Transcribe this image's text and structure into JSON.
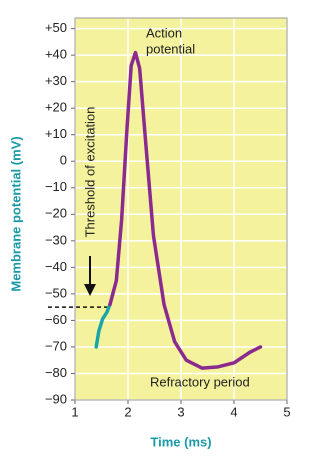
{
  "chart_data": {
    "type": "line",
    "x_label": "Time (ms)",
    "y_label": "Membrane potential (mV)",
    "xlim": [
      1,
      5
    ],
    "xticks": [
      1,
      2,
      3,
      4,
      5
    ],
    "ylim": [
      -90,
      54
    ],
    "yticks": [
      {
        "value": 50,
        "label": "+50"
      },
      {
        "value": 40,
        "label": "+40"
      },
      {
        "value": 30,
        "label": "+30"
      },
      {
        "value": 20,
        "label": "+20"
      },
      {
        "value": 10,
        "label": "+10"
      },
      0,
      {
        "value": -10,
        "label": "−10"
      },
      {
        "value": -20,
        "label": "−20"
      },
      {
        "value": -30,
        "label": "−30"
      },
      {
        "value": -40,
        "label": "−40"
      },
      {
        "value": -50,
        "label": "−50"
      },
      {
        "value": -60,
        "label": "−60"
      },
      {
        "value": -70,
        "label": "−70"
      },
      {
        "value": -80,
        "label": "−80"
      },
      {
        "value": -90,
        "label": "−90"
      }
    ],
    "grid": true,
    "background": "#f4f29c",
    "series": [
      {
        "color": "#1aa6a6",
        "x": [
          1.4,
          1.45,
          1.52,
          1.6,
          1.66
        ],
        "values": [
          -70,
          -64,
          -59.5,
          -57,
          -54
        ]
      },
      {
        "color": "#8b2a8f",
        "x": [
          1.66,
          1.78,
          1.88,
          1.98,
          2.06,
          2.14,
          2.22,
          2.33,
          2.48,
          2.68,
          2.88,
          3.1,
          3.4,
          3.7,
          4.0,
          4.3,
          4.5
        ],
        "values": [
          -54,
          -45,
          -22,
          12,
          36,
          41,
          35,
          8,
          -28,
          -54,
          -68,
          -75,
          -78,
          -77.5,
          -76,
          -72,
          -70
        ]
      }
    ],
    "threshold": -55,
    "annotations": [
      "Action",
      "potential",
      "Refractory period",
      "Threshold of excitation"
    ]
  }
}
